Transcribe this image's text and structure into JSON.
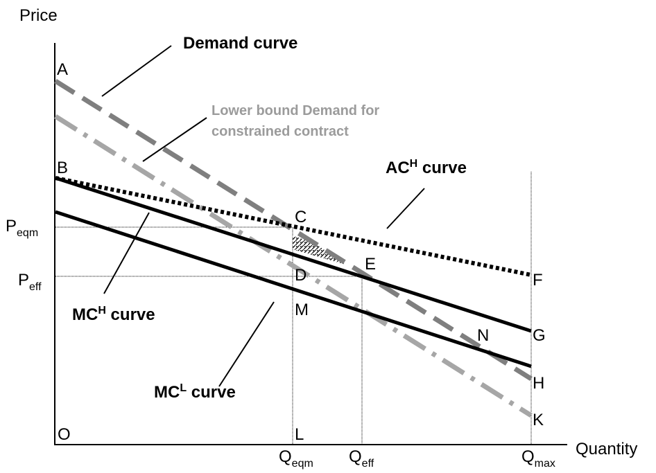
{
  "axes": {
    "y_label": "Price",
    "x_label": "Quantity",
    "origin": "O"
  },
  "points": {
    "A": "A",
    "B": "B",
    "C": "C",
    "D": "D",
    "E": "E",
    "F": "F",
    "G": "G",
    "H": "H",
    "K": "K",
    "L": "L",
    "M": "M",
    "N": "N"
  },
  "price_ticks": {
    "p_eqm": {
      "main": "P",
      "sub": "eqm"
    },
    "p_eff": {
      "main": "P",
      "sub": "eff"
    }
  },
  "quantity_ticks": {
    "q_eqm": {
      "main": "Q",
      "sub": "eqm"
    },
    "q_eff": {
      "main": "Q",
      "sub": "eff"
    },
    "q_max": {
      "main": "Q",
      "sub": "max"
    }
  },
  "curve_labels": {
    "demand": "Demand curve",
    "lower_bound_line1": "Lower bound Demand for",
    "lower_bound_line2": "constrained contract",
    "ach": {
      "main": "AC",
      "sup": "H",
      "rest": " curve"
    },
    "mch": {
      "main": "MC",
      "sup": "H",
      "rest": " curve"
    },
    "mcl": {
      "main": "MC",
      "sup": "L",
      "rest": " curve"
    }
  },
  "colors": {
    "axis": "#000000",
    "demand": "#7f7f7f",
    "lower_bound": "#a6a6a6",
    "ac_h": "#000000",
    "mc_h": "#000000",
    "mc_l": "#000000",
    "lower_bound_label": "#9b9b9b"
  }
}
